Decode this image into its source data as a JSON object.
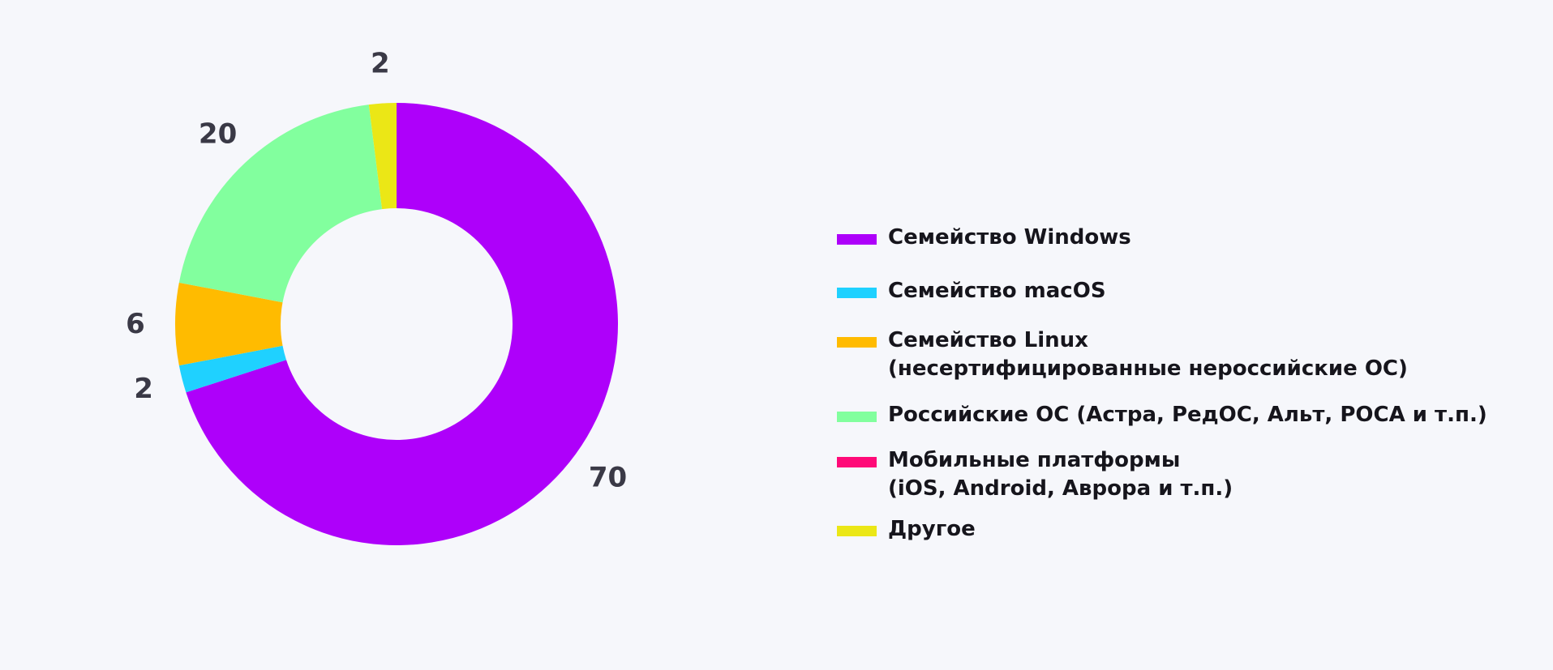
{
  "chart_data": {
    "type": "pie",
    "donut": true,
    "values": [
      70,
      2,
      6,
      20,
      0,
      2
    ],
    "labels": [
      "Семейство Windows",
      "Семейство macOS",
      "Семейство Linux (несертифицированные нероссийские ОС)",
      "Российские ОС (Астра, РедОС, Альт, РОСА и т.п.)",
      "Мобильные платформы (iOS, Android, Аврора и т.п.)",
      "Другое"
    ],
    "data_labels": [
      "70",
      "2",
      "6",
      "20",
      "",
      "2"
    ],
    "colors": [
      "#ae00fa",
      "#1fd1ff",
      "#ffbb00",
      "#82ff9e",
      "#ff0a78",
      "#ebe716"
    ],
    "legend_position": "right"
  },
  "legend": {
    "items": [
      {
        "lines": [
          "Семейство Windows"
        ],
        "color": "#ae00fa"
      },
      {
        "lines": [
          "Семейство macOS"
        ],
        "color": "#1fd1ff"
      },
      {
        "lines": [
          "Семейство Linux",
          "(несертифицированные нероссийские ОС)"
        ],
        "color": "#ffbb00"
      },
      {
        "lines": [
          "Российские ОС (Астра, РедОС, Альт, РОСА и т.п.)"
        ],
        "color": "#82ff9e"
      },
      {
        "lines": [
          "Мобильные платформы",
          "(iOS, Android, Аврора и т.п.)"
        ],
        "color": "#ff0a78"
      },
      {
        "lines": [
          "Другое"
        ],
        "color": "#ebe716"
      }
    ]
  }
}
